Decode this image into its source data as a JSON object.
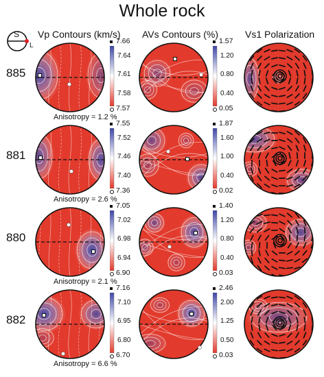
{
  "title": "Whole rock",
  "legend_icon": {
    "s_label": "S",
    "l_label": "L"
  },
  "columns": {
    "vp": "Vp Contours (km/s)",
    "avs": "AVs Contours (%)",
    "vs1": "Vs1 Polarization"
  },
  "colors": {
    "fast": "#e23a2c",
    "slow": "#3d47a6",
    "mid": "#ffffff"
  },
  "rows": [
    {
      "sample": "885",
      "anisotropy": "Anisotropy = 1.2 %",
      "vp": {
        "max": "7.66",
        "ticks": [
          "7.64",
          "7.61",
          "7.58"
        ],
        "min": "7.57"
      },
      "avs": {
        "max": "1.57",
        "ticks": [
          "1.20",
          "0.80",
          "0.40"
        ],
        "min": "0.05"
      }
    },
    {
      "sample": "881",
      "anisotropy": "Anisotropy = 2.6 %",
      "vp": {
        "max": "7.55",
        "ticks": [
          "7.52",
          "7.46",
          "7.40"
        ],
        "min": "7.36"
      },
      "avs": {
        "max": "1.87",
        "ticks": [
          "1.60",
          "1.00",
          "0.40"
        ],
        "min": "0.02"
      }
    },
    {
      "sample": "880",
      "anisotropy": "Anisotropy = 2.1 %",
      "vp": {
        "max": "7.05",
        "ticks": [
          "7.02",
          "6.98",
          "6.94"
        ],
        "min": "6.90"
      },
      "avs": {
        "max": "1.40",
        "ticks": [
          "1.20",
          "0.80",
          "0.40"
        ],
        "min": "0.03"
      }
    },
    {
      "sample": "882",
      "anisotropy": "Anisotropy = 6.6 %",
      "vp": {
        "max": "7.16",
        "ticks": [
          "7.10",
          "6.95",
          "6.80"
        ],
        "min": "6.70"
      },
      "avs": {
        "max": "2.46",
        "ticks": [
          "2.00",
          "1.25",
          "0.50"
        ],
        "min": "0.03"
      }
    }
  ]
}
